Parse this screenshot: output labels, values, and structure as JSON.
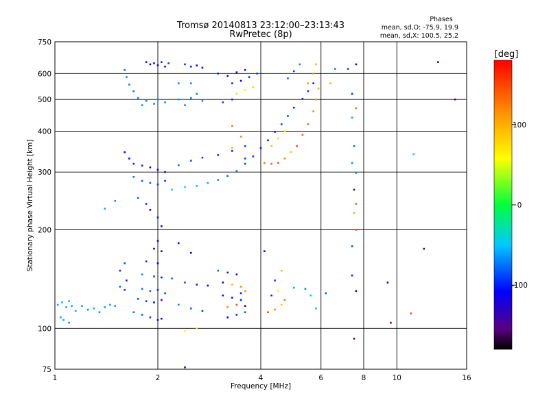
{
  "chart_data": {
    "type": "scatter",
    "title": "Tromsø 20140813 23:12:00–23:13:43",
    "subtitle": "RwPretec (8p)",
    "xlabel": "Frequency [MHz]",
    "ylabel": "Stationary phase Virtual Height [km]",
    "x_scale": "log",
    "y_scale": "log",
    "xlim": [
      1,
      16
    ],
    "ylim": [
      75,
      750
    ],
    "x_ticks": [
      1,
      2,
      4,
      6,
      8,
      10,
      16
    ],
    "y_ticks": [
      75,
      100,
      200,
      300,
      400,
      500,
      600,
      750
    ],
    "legend": {
      "title": "Phases",
      "lines": [
        "mean, sd,O: -75.9, 19.9",
        "mean, sd,X: 100.5, 25.2"
      ],
      "placement": "top-right"
    },
    "colorbar": {
      "label": "[deg]",
      "range": [
        -180,
        180
      ],
      "ticks": [
        100,
        0,
        -100
      ],
      "colormap": "rainbow"
    },
    "series": [
      {
        "values": [
          [
            1.02,
            118,
            -60
          ],
          [
            1.05,
            120,
            -58
          ],
          [
            1.08,
            116,
            -62
          ],
          [
            1.1,
            121,
            -55
          ],
          [
            1.12,
            117,
            -60
          ],
          [
            1.04,
            108,
            -62
          ],
          [
            1.06,
            106,
            -58
          ],
          [
            1.1,
            104,
            -65
          ],
          [
            1.15,
            113,
            -60
          ],
          [
            1.2,
            117,
            -58
          ],
          [
            1.25,
            114,
            -62
          ],
          [
            1.3,
            115,
            -60
          ],
          [
            1.35,
            112,
            -66
          ],
          [
            1.4,
            116,
            -62
          ],
          [
            1.45,
            118,
            -60
          ],
          [
            1.5,
            117,
            -64
          ],
          [
            1.55,
            134,
            -80
          ],
          [
            1.6,
            131,
            -90
          ],
          [
            1.62,
            140,
            -100
          ],
          [
            1.55,
            150,
            -95
          ],
          [
            1.6,
            158,
            -85
          ],
          [
            1.7,
            112,
            -75
          ],
          [
            1.8,
            110,
            -80
          ],
          [
            1.9,
            108,
            -95
          ],
          [
            2.0,
            106,
            -120
          ],
          [
            2.05,
            107,
            -105
          ],
          [
            1.75,
            123,
            -85
          ],
          [
            1.85,
            121,
            -90
          ],
          [
            1.95,
            120,
            -110
          ],
          [
            2.05,
            122,
            -130
          ],
          [
            1.8,
            132,
            -75
          ],
          [
            1.9,
            130,
            -80
          ],
          [
            2.0,
            131,
            -95
          ],
          [
            2.1,
            128,
            -85
          ],
          [
            1.8,
            146,
            -70
          ],
          [
            1.95,
            144,
            -90
          ],
          [
            2.05,
            143,
            -105
          ],
          [
            1.85,
            160,
            -95
          ],
          [
            2.0,
            158,
            -120
          ],
          [
            1.95,
            175,
            -110
          ],
          [
            2.05,
            172,
            -130
          ],
          [
            2.0,
            185,
            -125
          ],
          [
            1.6,
            615,
            -75
          ],
          [
            1.62,
            585,
            -70
          ],
          [
            1.65,
            555,
            -72
          ],
          [
            1.7,
            530,
            -75
          ],
          [
            1.75,
            505,
            -70
          ],
          [
            1.8,
            480,
            -68
          ],
          [
            1.85,
            495,
            -72
          ],
          [
            1.95,
            485,
            -70
          ],
          [
            2.0,
            500,
            -66
          ],
          [
            2.1,
            490,
            -70
          ],
          [
            1.85,
            650,
            -100
          ],
          [
            1.9,
            640,
            -110
          ],
          [
            1.95,
            645,
            -105
          ],
          [
            2.0,
            636,
            -115
          ],
          [
            2.05,
            650,
            -95
          ],
          [
            2.1,
            630,
            -120
          ],
          [
            2.15,
            645,
            -90
          ],
          [
            1.6,
            345,
            -110
          ],
          [
            1.65,
            330,
            -105
          ],
          [
            1.7,
            318,
            -95
          ],
          [
            1.8,
            314,
            -100
          ],
          [
            1.9,
            310,
            -110
          ],
          [
            2.0,
            305,
            -120
          ],
          [
            2.1,
            300,
            -105
          ],
          [
            1.7,
            290,
            -75
          ],
          [
            1.8,
            282,
            -80
          ],
          [
            1.9,
            278,
            -85
          ],
          [
            2.0,
            275,
            -90
          ],
          [
            2.1,
            282,
            -95
          ],
          [
            1.75,
            250,
            -80
          ],
          [
            1.85,
            240,
            -95
          ],
          [
            1.9,
            230,
            -110
          ],
          [
            2.0,
            218,
            -100
          ],
          [
            2.05,
            205,
            -110
          ],
          [
            1.4,
            232,
            -60
          ],
          [
            1.5,
            245,
            -65
          ],
          [
            2.2,
            265,
            -40
          ],
          [
            2.4,
            270,
            -50
          ],
          [
            2.6,
            272,
            -55
          ],
          [
            2.8,
            278,
            -60
          ],
          [
            3.0,
            284,
            -70
          ],
          [
            3.2,
            292,
            -80
          ],
          [
            3.4,
            302,
            -85
          ],
          [
            3.6,
            318,
            -90
          ],
          [
            3.8,
            335,
            -95
          ],
          [
            4.0,
            355,
            -100
          ],
          [
            4.2,
            375,
            -100
          ],
          [
            4.4,
            398,
            -95
          ],
          [
            4.6,
            420,
            -90
          ],
          [
            4.8,
            445,
            -85
          ],
          [
            5.0,
            472,
            -95
          ],
          [
            5.3,
            502,
            -100
          ],
          [
            5.5,
            530,
            -95
          ],
          [
            5.7,
            560,
            -100
          ],
          [
            2.3,
            315,
            -80
          ],
          [
            2.5,
            325,
            -85
          ],
          [
            2.7,
            332,
            -90
          ],
          [
            3.0,
            338,
            -95
          ],
          [
            3.3,
            348,
            -100
          ],
          [
            3.6,
            360,
            -90
          ],
          [
            2.3,
            500,
            -65
          ],
          [
            2.5,
            505,
            -70
          ],
          [
            2.7,
            495,
            -68
          ],
          [
            2.4,
            480,
            -70
          ],
          [
            2.6,
            520,
            -72
          ],
          [
            2.3,
            560,
            -72
          ],
          [
            2.5,
            560,
            -70
          ],
          [
            2.4,
            640,
            -95
          ],
          [
            2.5,
            630,
            -100
          ],
          [
            2.6,
            635,
            -110
          ],
          [
            2.7,
            625,
            -105
          ],
          [
            2.2,
            142,
            -75
          ],
          [
            2.4,
            138,
            -85
          ],
          [
            2.6,
            136,
            -100
          ],
          [
            2.8,
            135,
            -110
          ],
          [
            2.3,
            118,
            -70
          ],
          [
            2.5,
            115,
            -80
          ],
          [
            2.7,
            113,
            -95
          ],
          [
            2.4,
            98,
            60
          ],
          [
            2.6,
            100,
            70
          ],
          [
            2.3,
            182,
            -110
          ],
          [
            2.5,
            170,
            -120
          ],
          [
            2.4,
            76,
            -130
          ],
          [
            3.0,
            600,
            -100
          ],
          [
            3.2,
            590,
            -110
          ],
          [
            3.4,
            605,
            -120
          ],
          [
            3.6,
            615,
            -105
          ],
          [
            3.3,
            560,
            -100
          ],
          [
            3.5,
            570,
            -110
          ],
          [
            3.7,
            585,
            -95
          ],
          [
            3.9,
            600,
            -90
          ],
          [
            3.4,
            520,
            40
          ],
          [
            3.6,
            535,
            60
          ],
          [
            3.8,
            545,
            80
          ],
          [
            3.1,
            490,
            -90
          ],
          [
            3.3,
            500,
            -100
          ],
          [
            3.0,
            150,
            -80
          ],
          [
            3.2,
            148,
            -100
          ],
          [
            3.4,
            146,
            -120
          ],
          [
            3.1,
            138,
            -110
          ],
          [
            3.3,
            136,
            100
          ],
          [
            3.5,
            134,
            120
          ],
          [
            3.1,
            126,
            -140
          ],
          [
            3.3,
            124,
            -120
          ],
          [
            3.5,
            122,
            -100
          ],
          [
            3.2,
            116,
            120
          ],
          [
            3.4,
            118,
            150
          ],
          [
            3.6,
            117,
            -130
          ],
          [
            3.2,
            108,
            -110
          ],
          [
            3.4,
            110,
            -100
          ],
          [
            3.6,
            112,
            -80
          ],
          [
            3.5,
            128,
            -100
          ],
          [
            3.6,
            130,
            110
          ],
          [
            3.3,
            415,
            130
          ],
          [
            3.5,
            385,
            120
          ],
          [
            3.3,
            355,
            100
          ],
          [
            3.6,
            330,
            -90
          ],
          [
            4.1,
            320,
            130
          ],
          [
            4.3,
            318,
            140
          ],
          [
            4.5,
            320,
            150
          ],
          [
            4.7,
            330,
            120
          ],
          [
            4.9,
            345,
            90
          ],
          [
            5.1,
            360,
            150
          ],
          [
            5.3,
            390,
            140
          ],
          [
            5.5,
            420,
            130
          ],
          [
            5.7,
            460,
            120
          ],
          [
            5.8,
            500,
            110
          ],
          [
            5.9,
            540,
            100
          ],
          [
            5.7,
            600,
            110
          ],
          [
            5.8,
            640,
            100
          ],
          [
            5.5,
            560,
            120
          ],
          [
            4.3,
            360,
            90
          ],
          [
            4.5,
            380,
            80
          ],
          [
            4.7,
            400,
            70
          ],
          [
            4.8,
            580,
            -80
          ],
          [
            5.0,
            610,
            -90
          ],
          [
            5.2,
            640,
            -70
          ],
          [
            4.2,
            112,
            150
          ],
          [
            4.4,
            114,
            120
          ],
          [
            4.6,
            118,
            90
          ],
          [
            4.3,
            126,
            -100
          ],
          [
            4.5,
            130,
            60
          ],
          [
            4.7,
            122,
            130
          ],
          [
            4.4,
            140,
            -90
          ],
          [
            4.6,
            150,
            100
          ],
          [
            4.1,
            172,
            -110
          ],
          [
            5.0,
            133,
            -60
          ],
          [
            5.4,
            132,
            -70
          ],
          [
            5.6,
            126,
            -50
          ],
          [
            5.8,
            115,
            -55
          ],
          [
            6.2,
            128,
            -80
          ],
          [
            6.6,
            620,
            -70
          ],
          [
            7.2,
            620,
            -90
          ],
          [
            7.6,
            640,
            -120
          ],
          [
            6.4,
            560,
            100
          ],
          [
            7.4,
            520,
            -95
          ],
          [
            7.6,
            470,
            130
          ],
          [
            7.4,
            440,
            -60
          ],
          [
            7.5,
            360,
            -75
          ],
          [
            7.4,
            320,
            -70
          ],
          [
            7.6,
            298,
            -60
          ],
          [
            7.5,
            265,
            -130
          ],
          [
            7.6,
            240,
            140
          ],
          [
            7.5,
            225,
            100
          ],
          [
            7.4,
            178,
            -90
          ],
          [
            7.6,
            200,
            150
          ],
          [
            7.5,
            93,
            -160
          ],
          [
            7.4,
            145,
            -100
          ],
          [
            7.6,
            130,
            -110
          ],
          [
            9.4,
            138,
            -110
          ],
          [
            9.6,
            104,
            -150
          ],
          [
            11.0,
            111,
            150
          ],
          [
            11.2,
            340,
            -40
          ],
          [
            12.0,
            175,
            -120
          ],
          [
            13.2,
            650,
            -150
          ],
          [
            14.8,
            500,
            -160
          ]
        ]
      }
    ]
  }
}
